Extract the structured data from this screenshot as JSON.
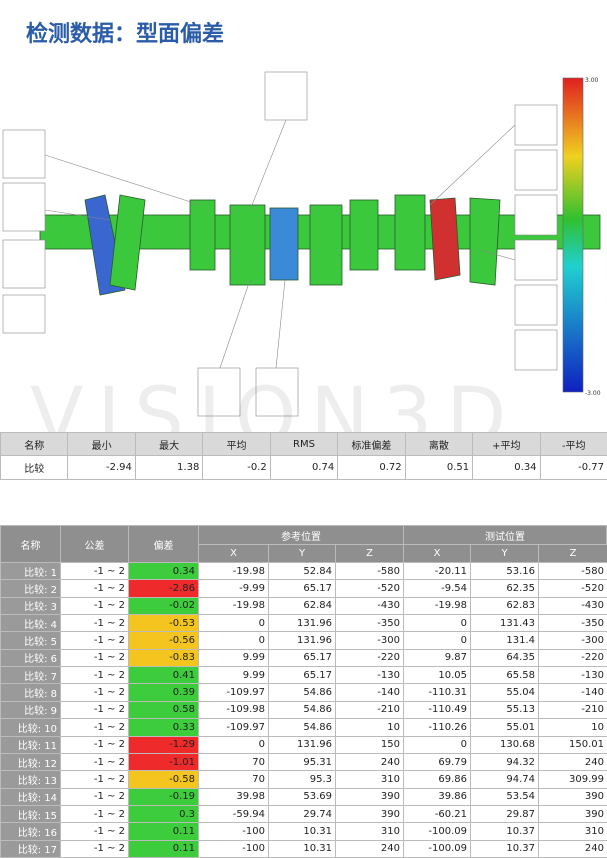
{
  "title": "检测数据：型面偏差",
  "image": {
    "watermark": "VISION3D",
    "scale_max": "3.00",
    "scale_min": "-3.00"
  },
  "summary": {
    "headers": [
      "名称",
      "最小",
      "最大",
      "平均",
      "RMS",
      "标准偏差",
      "离散",
      "+平均",
      "-平均"
    ],
    "row": [
      "比较",
      -2.94,
      1.38,
      -0.2,
      0.74,
      0.72,
      0.51,
      0.34,
      -0.77
    ]
  },
  "detail": {
    "headers": {
      "name": "名称",
      "tolerance": "公差",
      "deviation": "偏差",
      "reference": "参考位置",
      "test": "测试位置",
      "axes": [
        "X",
        "Y",
        "Z"
      ]
    },
    "rows": [
      [
        "比较: 1",
        "-1 ~ 2",
        0.34,
        -19.98,
        52.84,
        -580,
        -20.11,
        53.16,
        -580
      ],
      [
        "比较: 2",
        "-1 ~ 2",
        -2.86,
        -9.99,
        65.17,
        -520,
        -9.54,
        62.35,
        -520
      ],
      [
        "比较: 3",
        "-1 ~ 2",
        -0.02,
        -19.98,
        62.84,
        -430,
        -19.98,
        62.83,
        -430
      ],
      [
        "比较: 4",
        "-1 ~ 2",
        -0.53,
        0,
        131.96,
        -350,
        0,
        131.43,
        -350
      ],
      [
        "比较: 5",
        "-1 ~ 2",
        -0.56,
        0,
        131.96,
        -300,
        0,
        131.4,
        -300
      ],
      [
        "比较: 6",
        "-1 ~ 2",
        -0.83,
        9.99,
        65.17,
        -220,
        9.87,
        64.35,
        -220
      ],
      [
        "比较: 7",
        "-1 ~ 2",
        0.41,
        9.99,
        65.17,
        -130,
        10.05,
        65.58,
        -130
      ],
      [
        "比较: 8",
        "-1 ~ 2",
        0.39,
        -109.97,
        54.86,
        -140,
        -110.31,
        55.04,
        -140
      ],
      [
        "比较: 9",
        "-1 ~ 2",
        0.58,
        -109.98,
        54.86,
        -210,
        -110.49,
        55.13,
        -210
      ],
      [
        "比较: 10",
        "-1 ~ 2",
        0.33,
        -109.97,
        54.86,
        10,
        -110.26,
        55.01,
        10
      ],
      [
        "比较: 11",
        "-1 ~ 2",
        -1.29,
        0,
        131.96,
        150,
        0,
        130.68,
        150.01
      ],
      [
        "比较: 12",
        "-1 ~ 2",
        -1.01,
        70,
        95.31,
        240,
        69.79,
        94.32,
        240
      ],
      [
        "比较: 13",
        "-1 ~ 2",
        -0.58,
        70,
        95.3,
        310,
        69.86,
        94.74,
        309.99
      ],
      [
        "比较: 14",
        "-1 ~ 2",
        -0.19,
        39.98,
        53.69,
        390,
        39.86,
        53.54,
        390
      ],
      [
        "比较: 15",
        "-1 ~ 2",
        0.3,
        -59.94,
        29.74,
        390,
        -60.21,
        29.87,
        390
      ],
      [
        "比较: 16",
        "-1 ~ 2",
        0.11,
        -100,
        10.31,
        310,
        -100.09,
        10.37,
        310
      ],
      [
        "比较: 17",
        "-1 ~ 2",
        0.11,
        -100,
        10.31,
        240,
        -100.09,
        10.37,
        240
      ]
    ],
    "deviation_colors": [
      "#3ccc3c",
      "#ee2a2a",
      "#3ccc3c",
      "#f4c51e",
      "#f4c51e",
      "#f4c51e",
      "#3ccc3c",
      "#3ccc3c",
      "#3ccc3c",
      "#3ccc3c",
      "#ee2a2a",
      "#ee2a2a",
      "#f4c51e",
      "#3ccc3c",
      "#3ccc3c",
      "#3ccc3c",
      "#3ccc3c"
    ]
  }
}
